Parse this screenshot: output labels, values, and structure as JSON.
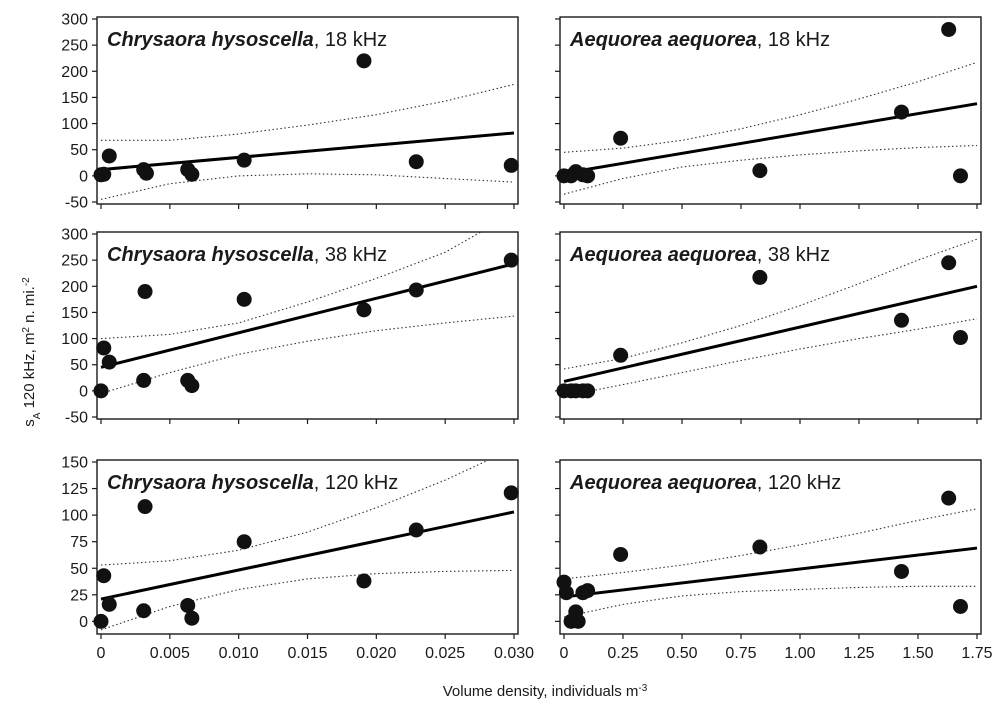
{
  "figure": {
    "xlabel": "Volume density, individuals m",
    "xlabel_sup": "-3",
    "ylabel_s": "s",
    "ylabel_sub": "A",
    "ylabel_main": " 120 kHz, m",
    "ylabel_sup1": "2",
    "ylabel_mid": " n. mi.",
    "ylabel_sup2": "-2"
  },
  "chart_data": [
    {
      "type": "scatter",
      "species": "Chrysaora hysoscella",
      "freq_label": ", 18 kHz",
      "xlim": [
        0,
        0.03
      ],
      "ylim": [
        -50,
        300
      ],
      "xticks": [
        0,
        0.005,
        0.01,
        0.015,
        0.02,
        0.025,
        0.03
      ],
      "xtick_labels": [
        "0",
        "0.005",
        "0.010",
        "0.015",
        "0.020",
        "0.025",
        "0.030"
      ],
      "yticks": [
        -50,
        0,
        50,
        100,
        150,
        200,
        250,
        300
      ],
      "ytick_labels": [
        "-50",
        "0",
        "50",
        "100",
        "150",
        "200",
        "250",
        "300"
      ],
      "x": [
        0.0,
        0.0002,
        0.0006,
        0.0031,
        0.0033,
        0.0063,
        0.0066,
        0.0104,
        0.0191,
        0.0229,
        0.0298
      ],
      "y": [
        2,
        3,
        38,
        12,
        5,
        12,
        3,
        30,
        220,
        27,
        20
      ],
      "fit": [
        [
          0,
          12
        ],
        [
          0.03,
          82
        ]
      ],
      "ci_upper": [
        [
          0,
          68
        ],
        [
          0.005,
          68
        ],
        [
          0.01,
          80
        ],
        [
          0.015,
          97
        ],
        [
          0.02,
          117
        ],
        [
          0.025,
          143
        ],
        [
          0.03,
          175
        ]
      ],
      "ci_lower": [
        [
          0,
          -45
        ],
        [
          0.005,
          -15
        ],
        [
          0.01,
          0
        ],
        [
          0.015,
          4
        ],
        [
          0.02,
          2
        ],
        [
          0.025,
          -5
        ],
        [
          0.03,
          -12
        ]
      ]
    },
    {
      "type": "scatter",
      "species": "Aequorea aequorea",
      "freq_label": ", 18 kHz",
      "xlim": [
        0,
        1.75
      ],
      "ylim": [
        -50,
        300
      ],
      "xticks": [
        0,
        0.25,
        0.5,
        0.75,
        1.0,
        1.25,
        1.5,
        1.75
      ],
      "xtick_labels": [
        "0",
        "0.25",
        "0.50",
        "0.75",
        "1.00",
        "1.25",
        "1.50",
        "1.75"
      ],
      "yticks": [
        -50,
        0,
        50,
        100,
        150,
        200,
        250,
        300
      ],
      "x": [
        0.0,
        0.03,
        0.05,
        0.08,
        0.1,
        0.24,
        0.83,
        1.43,
        1.63,
        1.68
      ],
      "y": [
        0,
        0,
        8,
        2,
        0,
        72,
        10,
        122,
        280,
        0
      ],
      "fit": [
        [
          0,
          5
        ],
        [
          1.75,
          138
        ]
      ],
      "ci_upper": [
        [
          0,
          45
        ],
        [
          0.25,
          53
        ],
        [
          0.5,
          68
        ],
        [
          0.75,
          90
        ],
        [
          1.0,
          117
        ],
        [
          1.25,
          147
        ],
        [
          1.5,
          180
        ],
        [
          1.75,
          217
        ]
      ],
      "ci_lower": [
        [
          0,
          -35
        ],
        [
          0.25,
          -5
        ],
        [
          0.5,
          17
        ],
        [
          0.75,
          30
        ],
        [
          1.0,
          40
        ],
        [
          1.25,
          48
        ],
        [
          1.5,
          54
        ],
        [
          1.75,
          58
        ]
      ]
    },
    {
      "type": "scatter",
      "species": "Chrysaora hysoscella",
      "freq_label": ", 38 kHz",
      "xlim": [
        0,
        0.03
      ],
      "ylim": [
        -50,
        300
      ],
      "xticks": [
        0,
        0.005,
        0.01,
        0.015,
        0.02,
        0.025,
        0.03
      ],
      "xtick_labels": [
        "0",
        "0.005",
        "0.010",
        "0.015",
        "0.020",
        "0.025",
        "0.030"
      ],
      "yticks": [
        -50,
        0,
        50,
        100,
        150,
        200,
        250,
        300
      ],
      "ytick_labels": [
        "-50",
        "0",
        "50",
        "100",
        "150",
        "200",
        "250",
        "300"
      ],
      "x": [
        0.0,
        0.0002,
        0.0006,
        0.0031,
        0.0032,
        0.0063,
        0.0066,
        0.0104,
        0.0191,
        0.0229,
        0.0298
      ],
      "y": [
        0,
        82,
        55,
        20,
        190,
        20,
        10,
        175,
        155,
        193,
        250
      ],
      "fit": [
        [
          0,
          45
        ],
        [
          0.03,
          243
        ]
      ],
      "ci_upper": [
        [
          0,
          100
        ],
        [
          0.005,
          108
        ],
        [
          0.01,
          130
        ],
        [
          0.015,
          170
        ],
        [
          0.02,
          215
        ],
        [
          0.025,
          265
        ],
        [
          0.03,
          340
        ]
      ],
      "ci_lower": [
        [
          0,
          -5
        ],
        [
          0.005,
          35
        ],
        [
          0.01,
          70
        ],
        [
          0.015,
          95
        ],
        [
          0.02,
          115
        ],
        [
          0.025,
          130
        ],
        [
          0.03,
          143
        ]
      ]
    },
    {
      "type": "scatter",
      "species": "Aequorea aequorea",
      "freq_label": ", 38 kHz",
      "xlim": [
        0,
        1.75
      ],
      "ylim": [
        -50,
        300
      ],
      "xticks": [
        0,
        0.25,
        0.5,
        0.75,
        1.0,
        1.25,
        1.5,
        1.75
      ],
      "xtick_labels": [
        "0",
        "0.25",
        "0.50",
        "0.75",
        "1.00",
        "1.25",
        "1.50",
        "1.75"
      ],
      "yticks": [
        -50,
        0,
        50,
        100,
        150,
        200,
        250,
        300
      ],
      "x": [
        0.0,
        0.03,
        0.05,
        0.08,
        0.1,
        0.24,
        0.83,
        1.43,
        1.63,
        1.68
      ],
      "y": [
        0,
        0,
        0,
        0,
        0,
        68,
        217,
        135,
        245,
        102
      ],
      "fit": [
        [
          0,
          18
        ],
        [
          1.75,
          200
        ]
      ],
      "ci_upper": [
        [
          0,
          42
        ],
        [
          0.25,
          62
        ],
        [
          0.5,
          92
        ],
        [
          0.75,
          125
        ],
        [
          1.0,
          163
        ],
        [
          1.25,
          205
        ],
        [
          1.5,
          250
        ],
        [
          1.75,
          290
        ]
      ],
      "ci_lower": [
        [
          0,
          -10
        ],
        [
          0.25,
          12
        ],
        [
          0.5,
          35
        ],
        [
          0.75,
          58
        ],
        [
          1.0,
          80
        ],
        [
          1.25,
          100
        ],
        [
          1.5,
          118
        ],
        [
          1.75,
          138
        ]
      ]
    },
    {
      "type": "scatter",
      "species": "Chrysaora hysoscella",
      "freq_label": ", 120 kHz",
      "xlim": [
        0,
        0.03
      ],
      "ylim": [
        -10,
        150
      ],
      "xticks": [
        0,
        0.005,
        0.01,
        0.015,
        0.02,
        0.025,
        0.03
      ],
      "xtick_labels": [
        "0",
        "0.005",
        "0.010",
        "0.015",
        "0.020",
        "0.025",
        "0.030"
      ],
      "yticks": [
        0,
        25,
        50,
        75,
        100,
        125,
        150
      ],
      "ytick_labels": [
        "0",
        "25",
        "50",
        "75",
        "100",
        "125",
        "150"
      ],
      "x": [
        0.0,
        0.0002,
        0.0006,
        0.0031,
        0.0032,
        0.0063,
        0.0066,
        0.0104,
        0.0191,
        0.0229,
        0.0298
      ],
      "y": [
        0,
        43,
        16,
        10,
        108,
        15,
        3,
        75,
        38,
        86,
        121
      ],
      "fit": [
        [
          0,
          21
        ],
        [
          0.03,
          103
        ]
      ],
      "ci_upper": [
        [
          0,
          53
        ],
        [
          0.005,
          57
        ],
        [
          0.01,
          67
        ],
        [
          0.015,
          84
        ],
        [
          0.02,
          107
        ],
        [
          0.025,
          133
        ],
        [
          0.03,
          163
        ]
      ],
      "ci_lower": [
        [
          0,
          -8
        ],
        [
          0.005,
          14
        ],
        [
          0.01,
          30
        ],
        [
          0.015,
          40
        ],
        [
          0.02,
          45
        ],
        [
          0.025,
          47
        ],
        [
          0.03,
          48
        ]
      ]
    },
    {
      "type": "scatter",
      "species": "Aequorea aequorea",
      "freq_label": ", 120 kHz",
      "xlim": [
        0,
        1.75
      ],
      "ylim": [
        -10,
        150
      ],
      "xticks": [
        0,
        0.25,
        0.5,
        0.75,
        1.0,
        1.25,
        1.5,
        1.75
      ],
      "xtick_labels": [
        "0",
        "0.25",
        "0.50",
        "0.75",
        "1.00",
        "1.25",
        "1.50",
        "1.75"
      ],
      "yticks": [
        0,
        25,
        50,
        75,
        100,
        125,
        150
      ],
      "x": [
        0.0,
        0.01,
        0.03,
        0.05,
        0.06,
        0.08,
        0.1,
        0.24,
        0.83,
        1.43,
        1.63,
        1.68
      ],
      "y": [
        37,
        27,
        0,
        9,
        0,
        27,
        29,
        63,
        70,
        47,
        116,
        14
      ],
      "fit": [
        [
          0,
          23
        ],
        [
          1.75,
          69
        ]
      ],
      "ci_upper": [
        [
          0,
          40
        ],
        [
          0.25,
          46
        ],
        [
          0.5,
          53
        ],
        [
          0.75,
          62
        ],
        [
          1.0,
          72
        ],
        [
          1.25,
          83
        ],
        [
          1.5,
          95
        ],
        [
          1.75,
          106
        ]
      ],
      "ci_lower": [
        [
          0,
          4
        ],
        [
          0.25,
          16
        ],
        [
          0.5,
          24
        ],
        [
          0.75,
          28
        ],
        [
          1.0,
          30
        ],
        [
          1.25,
          32
        ],
        [
          1.5,
          33
        ],
        [
          1.75,
          33
        ]
      ]
    }
  ]
}
